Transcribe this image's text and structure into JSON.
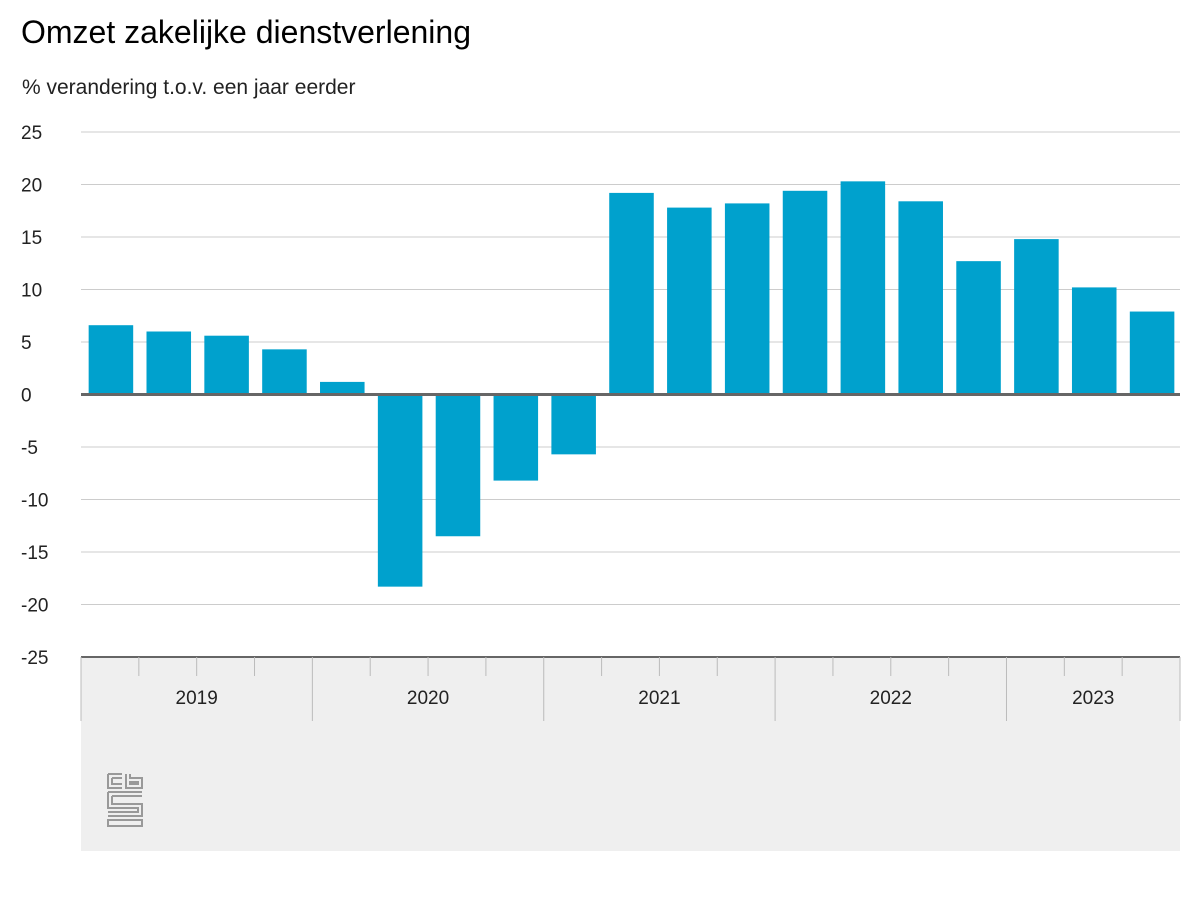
{
  "chart_data": {
    "type": "bar",
    "title": "Omzet zakelijke dienstverlening",
    "ylabel": "% verandering t.o.v. een jaar eerder",
    "xlabel": "",
    "ylim": [
      -25,
      25
    ],
    "yticks": [
      25,
      20,
      15,
      10,
      5,
      0,
      -5,
      -10,
      -15,
      -20,
      -25
    ],
    "categories": [
      "2019 Q1",
      "2019 Q2",
      "2019 Q3",
      "2019 Q4",
      "2020 Q1",
      "2020 Q2",
      "2020 Q3",
      "2020 Q4",
      "2021 Q1",
      "2021 Q2",
      "2021 Q3",
      "2021 Q4",
      "2022 Q1",
      "2022 Q2",
      "2022 Q3",
      "2022 Q4",
      "2023 Q1",
      "2023 Q2",
      "2023 Q3"
    ],
    "values": [
      6.6,
      6.0,
      5.6,
      4.3,
      1.2,
      -18.3,
      -13.5,
      -8.2,
      -5.7,
      19.2,
      17.8,
      18.2,
      19.4,
      20.3,
      18.4,
      12.7,
      14.8,
      10.2,
      7.9
    ],
    "years": [
      {
        "label": "2019",
        "quarters": 4
      },
      {
        "label": "2020",
        "quarters": 4
      },
      {
        "label": "2021",
        "quarters": 4
      },
      {
        "label": "2022",
        "quarters": 4
      },
      {
        "label": "2023",
        "quarters": 3
      }
    ],
    "grid": true,
    "legend": "none"
  },
  "colors": {
    "bar": "#00a1cd",
    "grid": "#cccccc",
    "zero_line": "#666666",
    "axis_band": "#efefef",
    "axis_divider": "#bbbbbb"
  },
  "logo": {
    "name": "cbs-logo-icon",
    "text": "cbs"
  }
}
